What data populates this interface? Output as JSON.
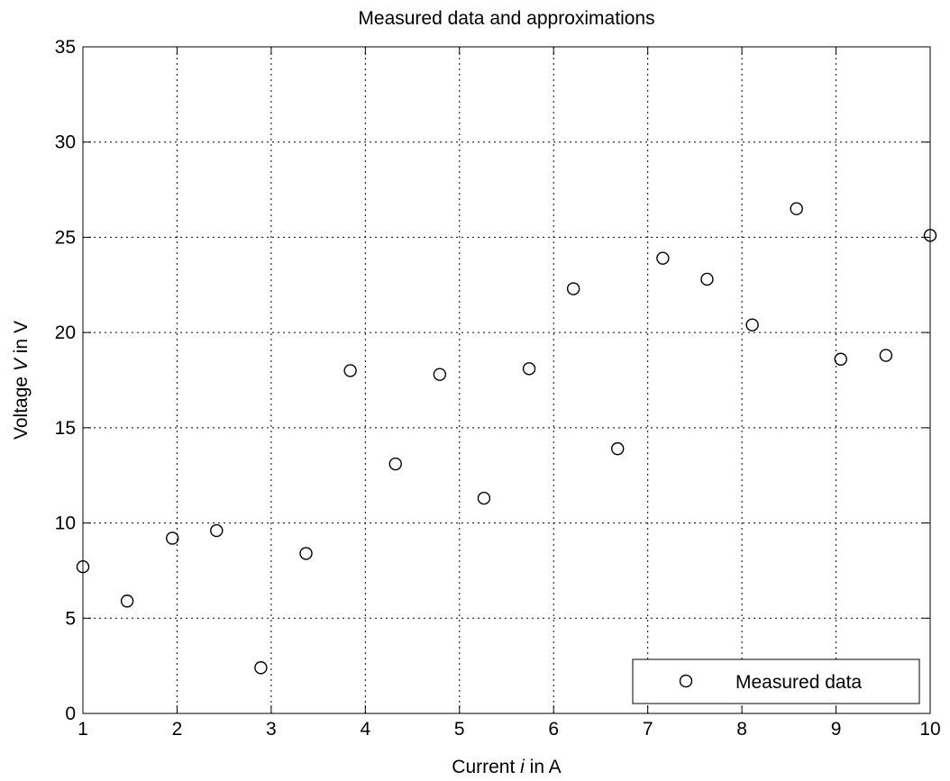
{
  "chart_data": {
    "type": "scatter",
    "title": "Measured data and approximations",
    "xlabel_parts": [
      "Current ",
      "i",
      " in A"
    ],
    "ylabel_parts": [
      "Voltage ",
      "V",
      " in V"
    ],
    "xlim": [
      1,
      10
    ],
    "ylim": [
      0,
      35
    ],
    "xticks": [
      1,
      2,
      3,
      4,
      5,
      6,
      7,
      8,
      9,
      10
    ],
    "yticks": [
      0,
      5,
      10,
      15,
      20,
      25,
      30,
      35
    ],
    "grid": true,
    "legend_position": "bottom-right",
    "series": [
      {
        "name": "Measured data",
        "marker": "circle",
        "x": [
          1.0,
          1.47,
          1.95,
          2.42,
          2.89,
          3.37,
          3.84,
          4.32,
          4.79,
          5.26,
          5.74,
          6.21,
          6.68,
          7.16,
          7.63,
          8.11,
          8.58,
          9.05,
          9.53,
          10.0
        ],
        "y": [
          7.7,
          5.9,
          9.2,
          9.6,
          2.4,
          8.4,
          18.0,
          13.1,
          17.8,
          11.3,
          18.1,
          22.3,
          13.9,
          23.9,
          22.8,
          20.4,
          26.5,
          18.6,
          18.8,
          25.1
        ]
      }
    ]
  }
}
